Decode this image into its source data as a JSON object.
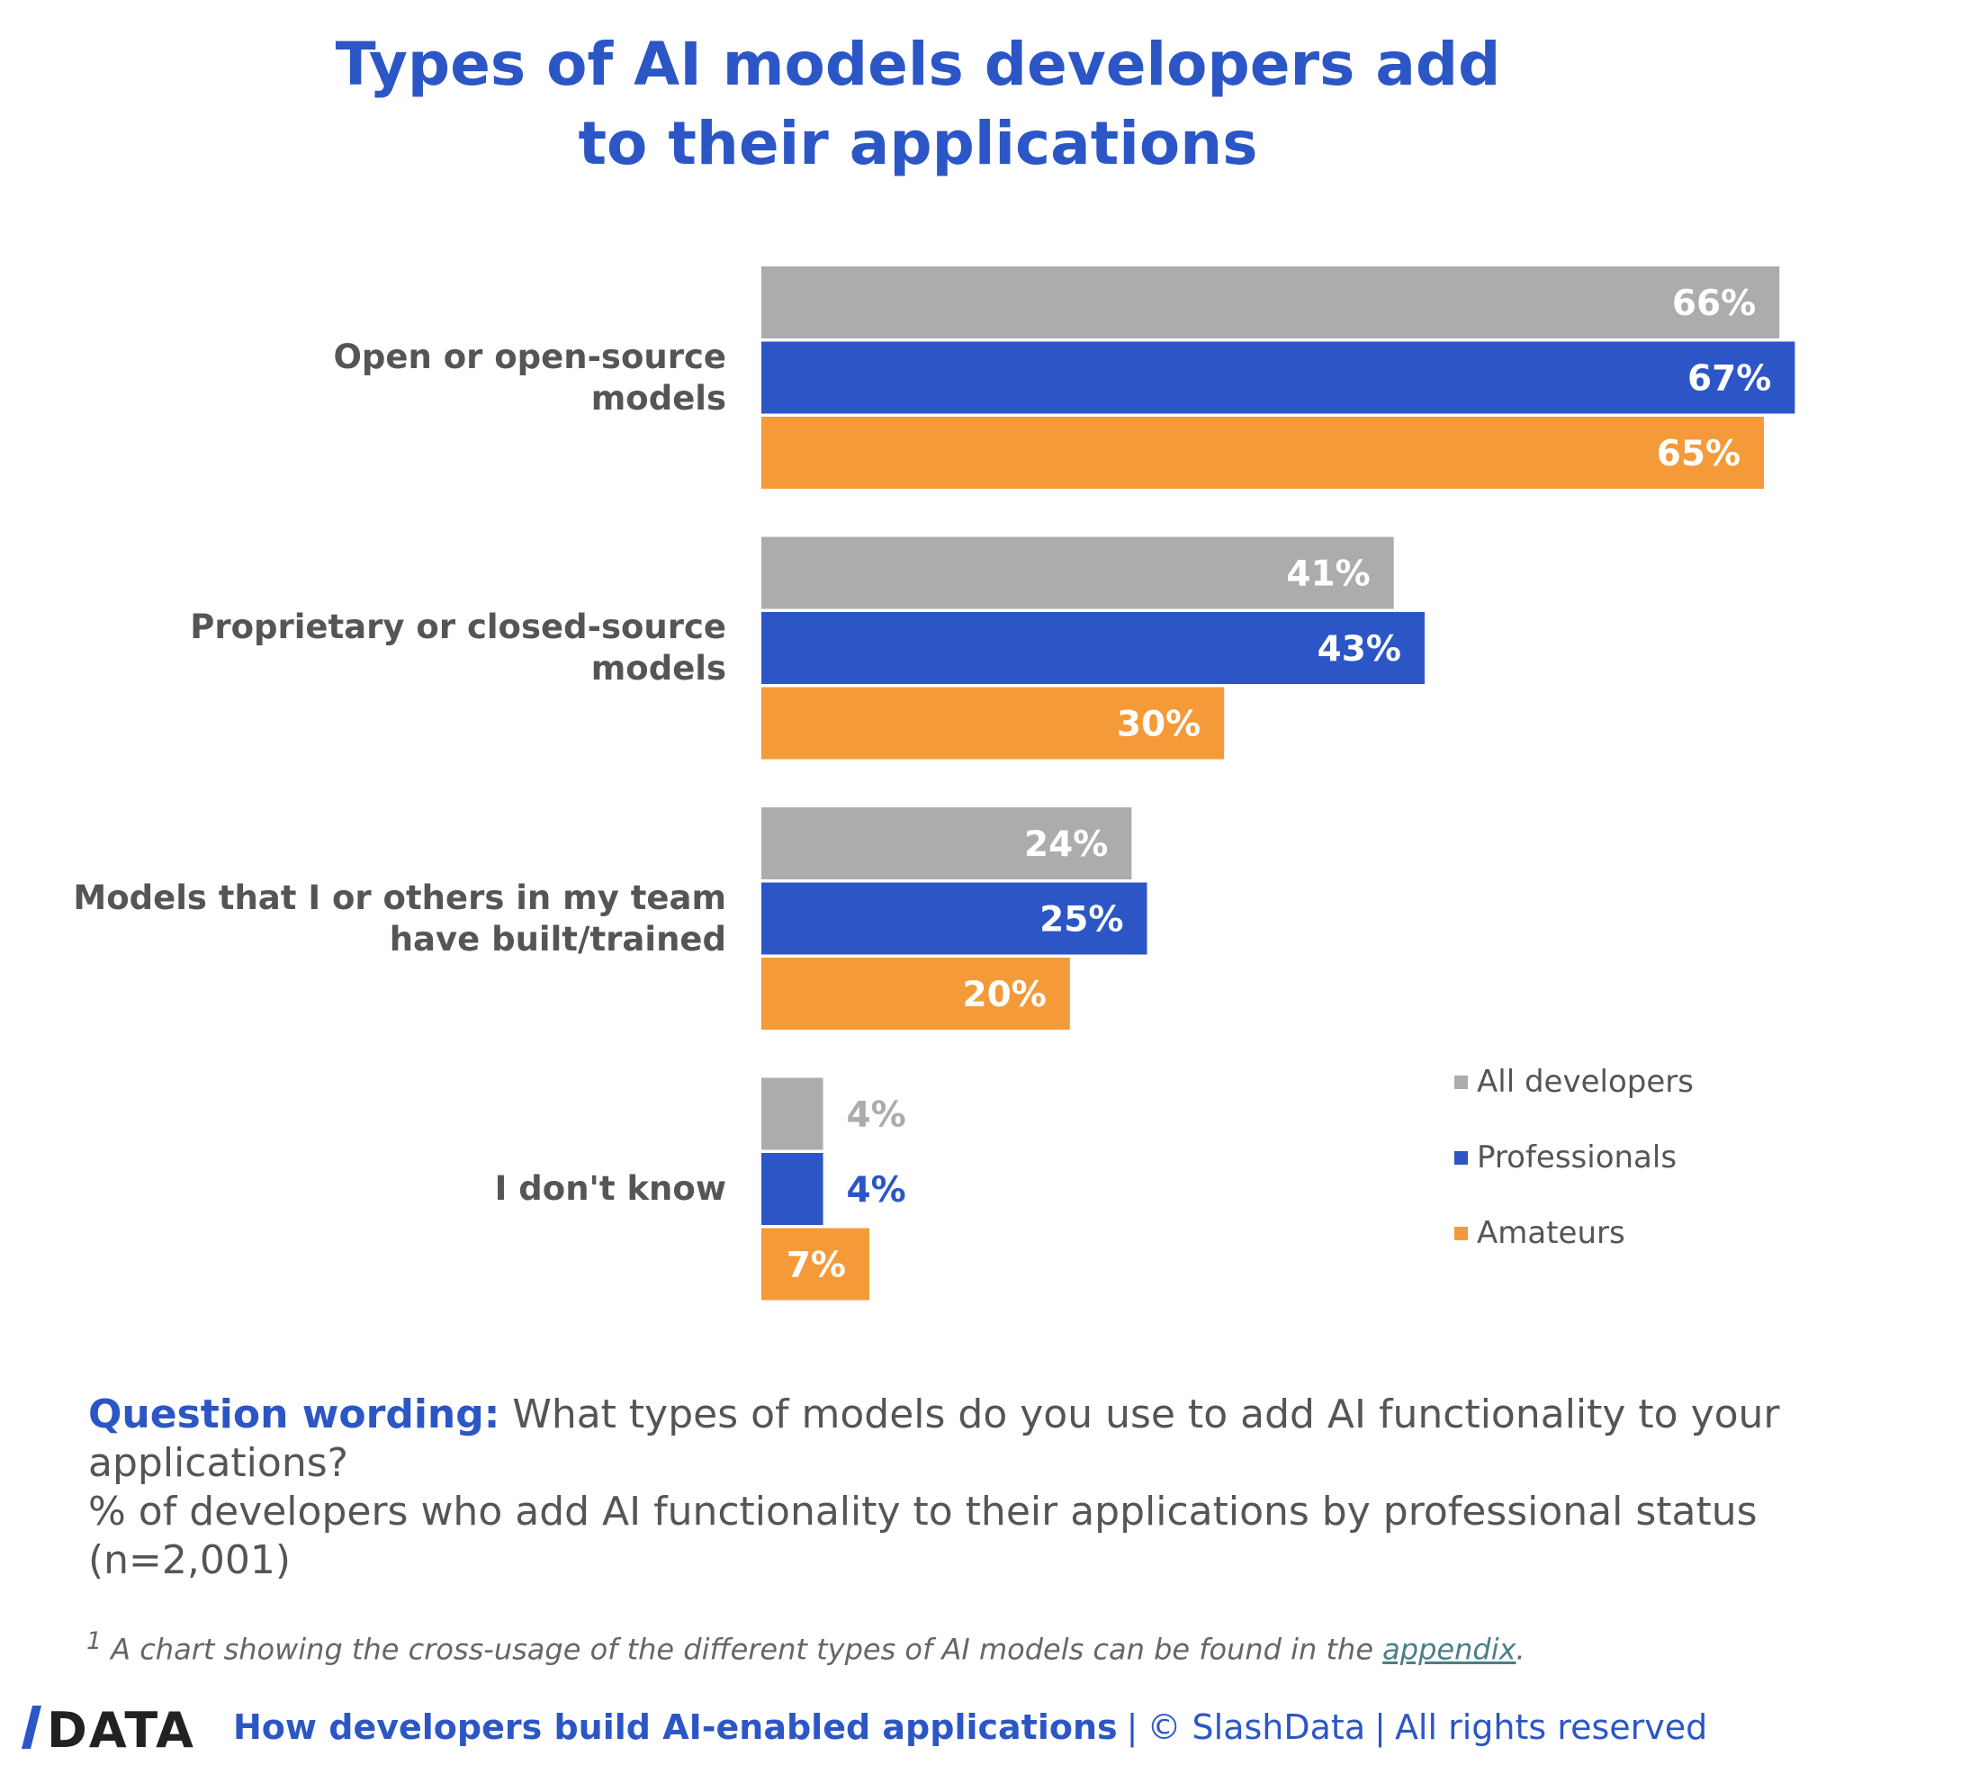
{
  "title_lines": [
    "Types of AI models developers add",
    "to their applications"
  ],
  "chart_data": {
    "type": "bar",
    "orientation": "horizontal",
    "title": "Types of AI models developers add to their applications",
    "categories": [
      [
        "Open or open-source",
        "models"
      ],
      [
        "Proprietary or closed-source",
        "models"
      ],
      [
        "Models that I or others in my team",
        "have built/trained"
      ],
      [
        "I don't know"
      ]
    ],
    "series": [
      {
        "name": "All developers",
        "color": "#acacac",
        "values": [
          66,
          41,
          24,
          4
        ]
      },
      {
        "name": "Professionals",
        "color": "#2c56c6",
        "values": [
          67,
          43,
          25,
          4
        ]
      },
      {
        "name": "Amateurs",
        "color": "#f59a38",
        "values": [
          65,
          30,
          20,
          7
        ]
      }
    ],
    "value_suffix": "%",
    "grid": false,
    "axes_visible": false,
    "legend_position": "bottom-right"
  },
  "question": {
    "label": "Question wording:",
    "text": " What types of models do you use to add AI functionality to your applications?",
    "subtext": "% of developers who add AI functionality to their applications by professional status (n=2,001)"
  },
  "footnote": {
    "marker": "1",
    "text": " A chart showing the cross-usage of the different types of AI models can be found in the ",
    "link": "appendix",
    "end": "."
  },
  "footer": {
    "logo": "/DATA",
    "report": "How developers build AI-enabled applications",
    "copyright": "© SlashData",
    "rights": "All rights reserved"
  }
}
